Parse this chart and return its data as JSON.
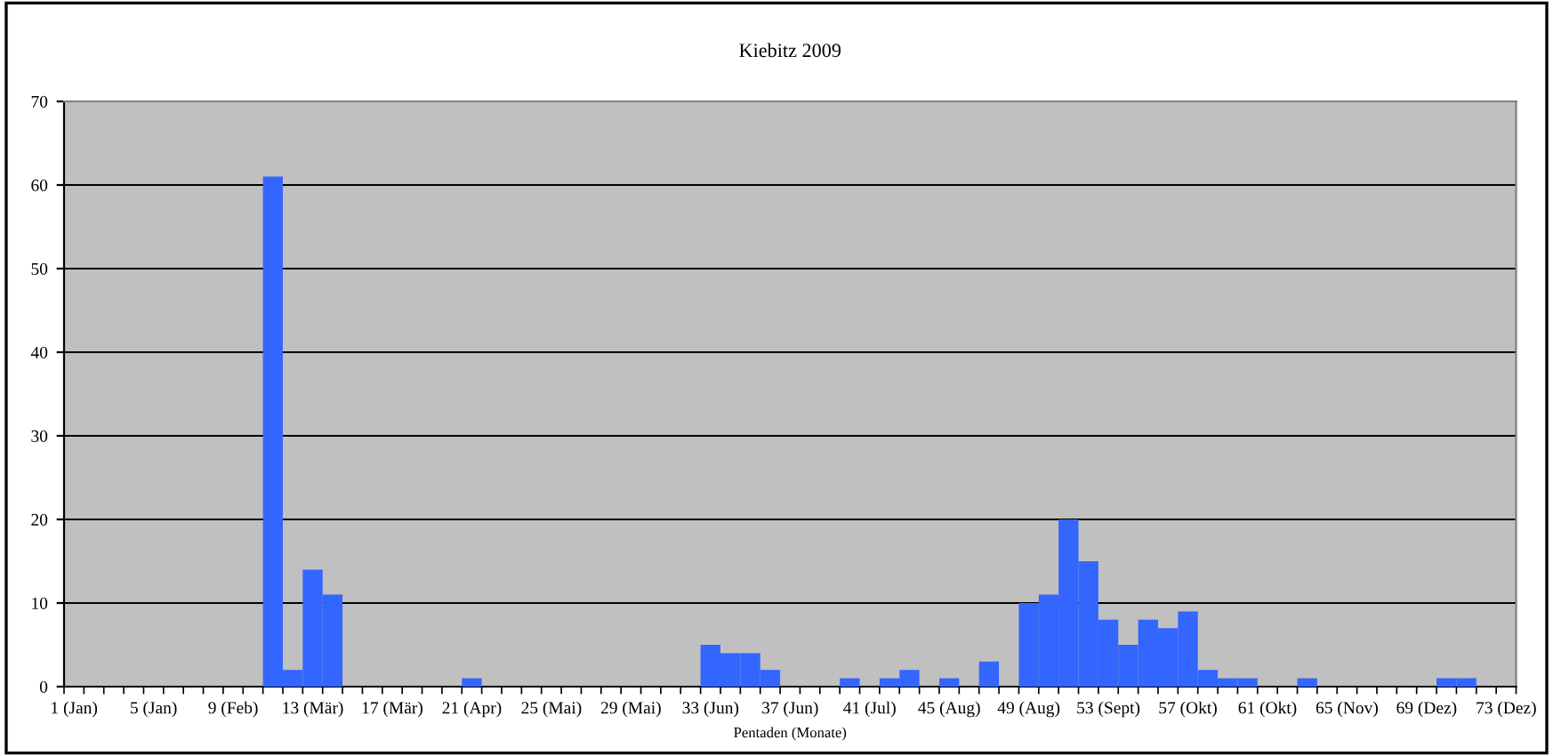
{
  "chart_data": {
    "type": "bar",
    "title": "Kiebitz 2009",
    "xlabel": "Pentaden (Monate)",
    "categories": [
      "1 (Jan)",
      null,
      null,
      null,
      "5 (Jan)",
      null,
      null,
      null,
      "9 (Feb)",
      null,
      null,
      null,
      "13 (Mär)",
      null,
      null,
      null,
      "17 (Mär)",
      null,
      null,
      null,
      "21 (Apr)",
      null,
      null,
      null,
      "25 (Mai)",
      null,
      null,
      null,
      "29 (Mai)",
      null,
      null,
      null,
      "33 (Jun)",
      null,
      null,
      null,
      "37 (Jun)",
      null,
      null,
      null,
      "41 (Jul)",
      null,
      null,
      null,
      "45 (Aug)",
      null,
      null,
      null,
      "49 (Aug)",
      null,
      null,
      null,
      "53 (Sept)",
      null,
      null,
      null,
      "57 (Okt)",
      null,
      null,
      null,
      "61 (Okt)",
      null,
      null,
      null,
      "65 (Nov)",
      null,
      null,
      null,
      "69 (Dez)",
      null,
      null,
      null,
      "73 (Dez)"
    ],
    "values": [
      0,
      0,
      0,
      0,
      0,
      0,
      0,
      0,
      0,
      0,
      61,
      2,
      14,
      11,
      0,
      0,
      0,
      0,
      0,
      0,
      1,
      0,
      0,
      0,
      0,
      0,
      0,
      0,
      0,
      0,
      0,
      0,
      5,
      4,
      4,
      2,
      0,
      0,
      0,
      1,
      0,
      1,
      2,
      0,
      1,
      0,
      3,
      0,
      10,
      11,
      20,
      15,
      8,
      5,
      8,
      7,
      9,
      2,
      1,
      1,
      0,
      0,
      1,
      0,
      0,
      0,
      0,
      0,
      0,
      1,
      1,
      0,
      0
    ],
    "color": "#3366ff",
    "ylim": [
      0,
      70
    ],
    "yticks": [
      0,
      10,
      20,
      30,
      40,
      50,
      60,
      70
    ],
    "grid": "y",
    "legend": false
  }
}
